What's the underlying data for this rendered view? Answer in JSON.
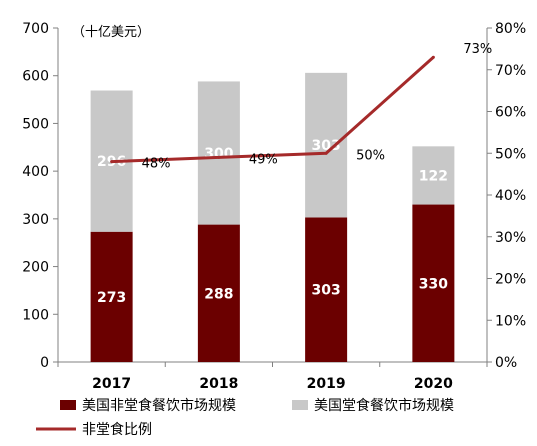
{
  "chart_data": {
    "type": "bar",
    "stacked": true,
    "unit_label": "（十亿美元）",
    "categories": [
      "2017",
      "2018",
      "2019",
      "2020"
    ],
    "series": [
      {
        "name": "美国非堂食餐饮市场规模",
        "values": [
          273,
          288,
          303,
          330
        ],
        "color": "#6b0000",
        "axis": "left"
      },
      {
        "name": "美国堂食餐饮市场规模",
        "values": [
          296,
          300,
          303,
          122
        ],
        "color": "#c8c8c8",
        "axis": "left"
      },
      {
        "name": "非堂食比例",
        "type": "line",
        "values": [
          48,
          49,
          50,
          73
        ],
        "labels": [
          "48%",
          "49%",
          "50%",
          "73%"
        ],
        "color": "#a52a2a",
        "axis": "right"
      }
    ],
    "y_left": {
      "min": 0,
      "max": 700,
      "ticks": [
        "0",
        "100",
        "200",
        "300",
        "400",
        "500",
        "600",
        "700"
      ]
    },
    "y_right": {
      "min": 0,
      "max": 80,
      "ticks": [
        "0%",
        "10%",
        "20%",
        "30%",
        "40%",
        "50%",
        "60%",
        "70%",
        "80%"
      ]
    },
    "grid": false,
    "legend": "bottom"
  }
}
